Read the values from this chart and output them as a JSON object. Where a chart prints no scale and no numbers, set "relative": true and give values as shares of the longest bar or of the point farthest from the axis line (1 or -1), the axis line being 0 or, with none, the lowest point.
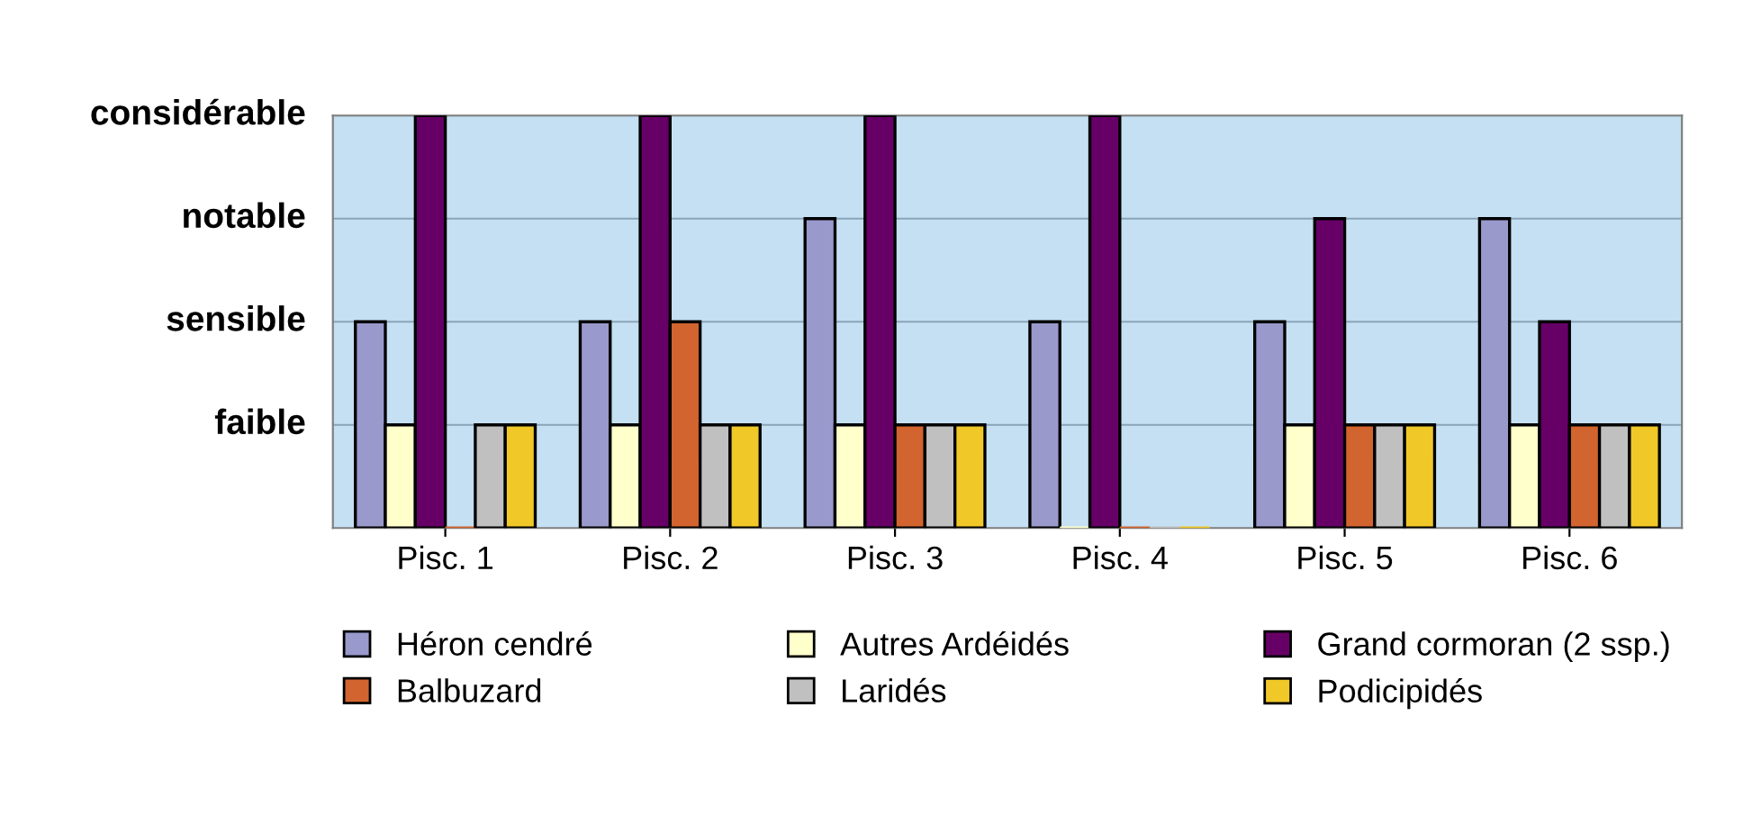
{
  "chart_data": {
    "type": "bar",
    "relative": true,
    "categories": [
      "Pisc. 1",
      "Pisc. 2",
      "Pisc. 3",
      "Pisc. 4",
      "Pisc. 5",
      "Pisc. 6"
    ],
    "series": [
      {
        "name": "Héron cendré",
        "color": "#9999cc",
        "values": [
          0.5,
          0.5,
          0.75,
          0.5,
          0.5,
          0.75
        ]
      },
      {
        "name": "Autres Ardéidés",
        "color": "#ffffcc",
        "values": [
          0.25,
          0.25,
          0.25,
          0,
          0.25,
          0.25
        ]
      },
      {
        "name": "Grand cormoran (2 ssp.)",
        "color": "#660066",
        "values": [
          1,
          1,
          1,
          1,
          0.75,
          0.5
        ]
      },
      {
        "name": "Balbuzard",
        "color": "#d2642f",
        "values": [
          0,
          0.5,
          0.25,
          0,
          0.25,
          0.25
        ]
      },
      {
        "name": "Laridés",
        "color": "#c0c0c0",
        "values": [
          0.25,
          0.25,
          0.25,
          0,
          0.25,
          0.25
        ]
      },
      {
        "name": "Podicipidés",
        "color": "#f0c828",
        "values": [
          0.25,
          0.25,
          0.25,
          0,
          0.25,
          0.25
        ]
      }
    ],
    "ref_lines": [
      {
        "axis": "y",
        "value": 0.25,
        "label": "faible",
        "color": "#8aa4b8"
      },
      {
        "axis": "y",
        "value": 0.5,
        "label": "sensible",
        "color": "#8aa4b8"
      },
      {
        "axis": "y",
        "value": 0.75,
        "label": "notable",
        "color": "#8aa4b8"
      },
      {
        "axis": "y",
        "value": 1,
        "label": "considérable",
        "color": "#8aa4b8"
      }
    ],
    "legend": "bottom"
  }
}
